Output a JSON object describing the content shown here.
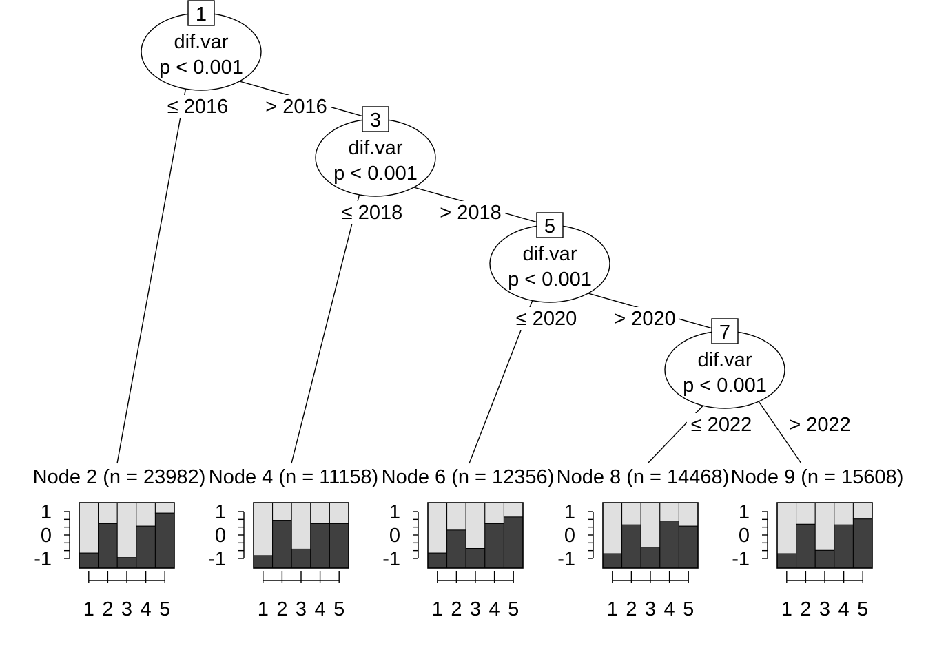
{
  "inner_nodes": [
    {
      "id": "1",
      "variable": "dif.var",
      "pvalue": "p < 0.001",
      "left_label": "≤ 2016",
      "right_label": "> 2016"
    },
    {
      "id": "3",
      "variable": "dif.var",
      "pvalue": "p < 0.001",
      "left_label": "≤ 2018",
      "right_label": "> 2018"
    },
    {
      "id": "5",
      "variable": "dif.var",
      "pvalue": "p < 0.001",
      "left_label": "≤ 2020",
      "right_label": "> 2020"
    },
    {
      "id": "7",
      "variable": "dif.var",
      "pvalue": "p < 0.001",
      "left_label": "≤ 2022",
      "right_label": "> 2022"
    }
  ],
  "terminal_nodes": [
    {
      "title": "Node 2 (n = 23982)",
      "dark_fraction": [
        0.23,
        0.68,
        0.16,
        0.64,
        0.84
      ]
    },
    {
      "title": "Node 4 (n = 11158)",
      "dark_fraction": [
        0.19,
        0.73,
        0.29,
        0.68,
        0.68
      ]
    },
    {
      "title": "Node 6 (n = 12356)",
      "dark_fraction": [
        0.23,
        0.58,
        0.3,
        0.68,
        0.78
      ]
    },
    {
      "title": "Node 8 (n = 14468)",
      "dark_fraction": [
        0.22,
        0.66,
        0.32,
        0.72,
        0.64
      ]
    },
    {
      "title": "Node 9 (n = 15608)",
      "dark_fraction": [
        0.22,
        0.67,
        0.27,
        0.66,
        0.75
      ]
    }
  ],
  "y_ticks": [
    "1",
    "0",
    "-1"
  ],
  "x_ticks": [
    "1",
    "2",
    "3",
    "4",
    "5"
  ],
  "colors": {
    "dark": "#404040",
    "light": "#e0e0e0"
  }
}
